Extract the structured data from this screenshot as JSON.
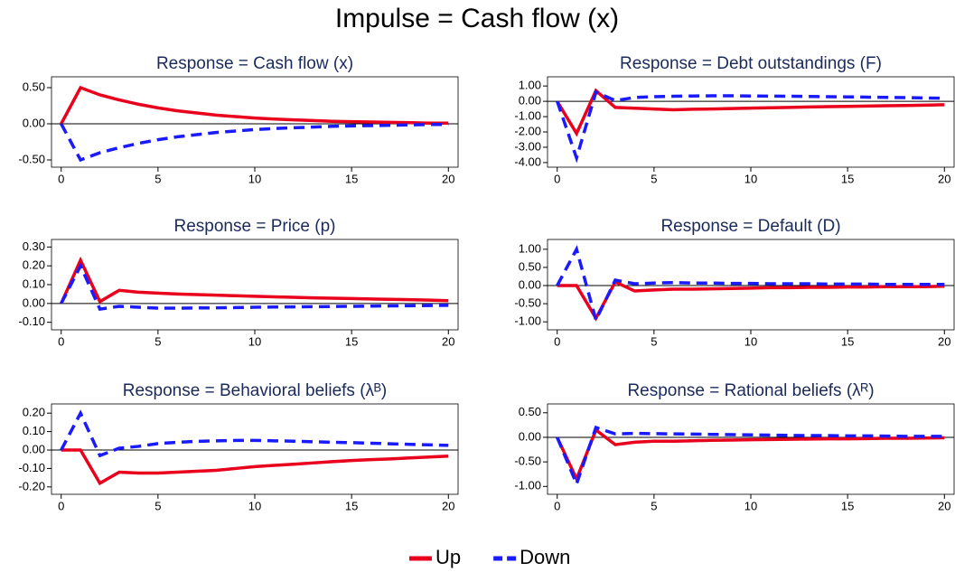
{
  "title": "Impulse = Cash flow (x)",
  "legend": [
    {
      "name": "Up",
      "color": "#e8001c",
      "dashed": false
    },
    {
      "name": "Down",
      "color": "#1a1aff",
      "dashed": true
    }
  ],
  "chart_data": [
    {
      "type": "line",
      "title": "Response = Cash flow (x)",
      "x": [
        0,
        1,
        2,
        3,
        4,
        5,
        6,
        7,
        8,
        9,
        10,
        11,
        12,
        13,
        14,
        15,
        16,
        17,
        18,
        19,
        20
      ],
      "xlim": [
        -0.5,
        20.5
      ],
      "xticks": [
        0,
        5,
        10,
        15,
        20
      ],
      "ylim": [
        -0.6,
        0.65
      ],
      "yticks": [
        {
          "value": 0.5,
          "label": "0.50"
        },
        {
          "value": 0,
          "label": "0.00"
        },
        {
          "value": -0.5,
          "label": "-0.50"
        }
      ],
      "series": [
        {
          "color": "#e8001c",
          "dashed": false,
          "values": [
            0,
            0.5,
            0.4,
            0.33,
            0.27,
            0.22,
            0.18,
            0.15,
            0.12,
            0.1,
            0.08,
            0.065,
            0.055,
            0.045,
            0.035,
            0.03,
            0.025,
            0.02,
            0.015,
            0.01,
            0.01
          ]
        },
        {
          "color": "#1a1aff",
          "dashed": true,
          "values": [
            0,
            -0.5,
            -0.4,
            -0.33,
            -0.27,
            -0.22,
            -0.18,
            -0.15,
            -0.12,
            -0.1,
            -0.08,
            -0.065,
            -0.055,
            -0.045,
            -0.035,
            -0.03,
            -0.025,
            -0.02,
            -0.015,
            -0.01,
            -0.01
          ]
        }
      ]
    },
    {
      "type": "line",
      "title": "Response = Debt outstandings (F)",
      "x": [
        0,
        1,
        2,
        3,
        4,
        5,
        6,
        7,
        8,
        9,
        10,
        11,
        12,
        13,
        14,
        15,
        16,
        17,
        18,
        19,
        20
      ],
      "xlim": [
        -0.5,
        20.5
      ],
      "xticks": [
        0,
        5,
        10,
        15,
        20
      ],
      "ylim": [
        -4.3,
        1.6
      ],
      "yticks": [
        {
          "value": 1,
          "label": "1.00"
        },
        {
          "value": 0,
          "label": "0.00"
        },
        {
          "value": -1,
          "label": "-1.00"
        },
        {
          "value": -2,
          "label": "-2.00"
        },
        {
          "value": -3,
          "label": "-3.00"
        },
        {
          "value": -4,
          "label": "-4.00"
        }
      ],
      "series": [
        {
          "color": "#e8001c",
          "dashed": false,
          "values": [
            0,
            -2.1,
            0.7,
            -0.4,
            -0.45,
            -0.5,
            -0.55,
            -0.52,
            -0.5,
            -0.47,
            -0.44,
            -0.42,
            -0.4,
            -0.37,
            -0.35,
            -0.33,
            -0.31,
            -0.29,
            -0.27,
            -0.25,
            -0.22
          ]
        },
        {
          "color": "#1a1aff",
          "dashed": true,
          "values": [
            0,
            -3.7,
            0.6,
            0.05,
            0.25,
            0.3,
            0.33,
            0.35,
            0.36,
            0.36,
            0.35,
            0.34,
            0.33,
            0.32,
            0.3,
            0.29,
            0.27,
            0.26,
            0.24,
            0.22,
            0.2
          ]
        }
      ]
    },
    {
      "type": "line",
      "title": "Response = Price (p)",
      "x": [
        0,
        1,
        2,
        3,
        4,
        5,
        6,
        7,
        8,
        9,
        10,
        11,
        12,
        13,
        14,
        15,
        16,
        17,
        18,
        19,
        20
      ],
      "xlim": [
        -0.5,
        20.5
      ],
      "xticks": [
        0,
        5,
        10,
        15,
        20
      ],
      "ylim": [
        -0.14,
        0.34
      ],
      "yticks": [
        {
          "value": 0.3,
          "label": "0.30"
        },
        {
          "value": 0.2,
          "label": "0.20"
        },
        {
          "value": 0.1,
          "label": "0.10"
        },
        {
          "value": 0,
          "label": "0.00"
        },
        {
          "value": -0.1,
          "label": "-0.10"
        }
      ],
      "series": [
        {
          "color": "#e8001c",
          "dashed": false,
          "values": [
            0,
            0.23,
            0.01,
            0.07,
            0.06,
            0.055,
            0.05,
            0.047,
            0.044,
            0.041,
            0.038,
            0.035,
            0.033,
            0.03,
            0.028,
            0.026,
            0.024,
            0.022,
            0.02,
            0.018,
            0.015
          ]
        },
        {
          "color": "#1a1aff",
          "dashed": true,
          "values": [
            0,
            0.2,
            -0.03,
            -0.015,
            -0.02,
            -0.025,
            -0.025,
            -0.024,
            -0.023,
            -0.022,
            -0.02,
            -0.019,
            -0.018,
            -0.017,
            -0.016,
            -0.015,
            -0.014,
            -0.013,
            -0.012,
            -0.011,
            -0.01
          ]
        }
      ]
    },
    {
      "type": "line",
      "title": "Response = Default (D)",
      "x": [
        0,
        1,
        2,
        3,
        4,
        5,
        6,
        7,
        8,
        9,
        10,
        11,
        12,
        13,
        14,
        15,
        16,
        17,
        18,
        19,
        20
      ],
      "xlim": [
        -0.5,
        20.5
      ],
      "xticks": [
        0,
        5,
        10,
        15,
        20
      ],
      "ylim": [
        -1.22,
        1.27
      ],
      "yticks": [
        {
          "value": 1,
          "label": "1.00"
        },
        {
          "value": 0.5,
          "label": "0.50"
        },
        {
          "value": 0,
          "label": "0.00"
        },
        {
          "value": -0.5,
          "label": "-0.50"
        },
        {
          "value": -1,
          "label": "-1.00"
        }
      ],
      "series": [
        {
          "color": "#e8001c",
          "dashed": false,
          "values": [
            0,
            0,
            -0.9,
            0.1,
            -0.15,
            -0.12,
            -0.1,
            -0.1,
            -0.09,
            -0.08,
            -0.07,
            -0.06,
            -0.06,
            -0.05,
            -0.05,
            -0.04,
            -0.04,
            -0.03,
            -0.03,
            -0.03,
            -0.02
          ]
        },
        {
          "color": "#1a1aff",
          "dashed": true,
          "values": [
            0,
            1.0,
            -0.95,
            0.15,
            0.05,
            0.07,
            0.08,
            0.07,
            0.07,
            0.06,
            0.06,
            0.05,
            0.05,
            0.05,
            0.04,
            0.04,
            0.04,
            0.03,
            0.03,
            0.03,
            0.03
          ]
        }
      ]
    },
    {
      "type": "line",
      "title": "Response = Behavioral beliefs (λᴮ)",
      "x": [
        0,
        1,
        2,
        3,
        4,
        5,
        6,
        7,
        8,
        9,
        10,
        11,
        12,
        13,
        14,
        15,
        16,
        17,
        18,
        19,
        20
      ],
      "xlim": [
        -0.5,
        20.5
      ],
      "xticks": [
        0,
        5,
        10,
        15,
        20
      ],
      "ylim": [
        -0.24,
        0.25
      ],
      "yticks": [
        {
          "value": 0.2,
          "label": "0.20"
        },
        {
          "value": 0.1,
          "label": "0.10"
        },
        {
          "value": 0,
          "label": "0.00"
        },
        {
          "value": -0.1,
          "label": "-0.10"
        },
        {
          "value": -0.2,
          "label": "-0.20"
        }
      ],
      "series": [
        {
          "color": "#e8001c",
          "dashed": false,
          "values": [
            0,
            0,
            -0.18,
            -0.12,
            -0.125,
            -0.125,
            -0.12,
            -0.115,
            -0.11,
            -0.1,
            -0.09,
            -0.083,
            -0.077,
            -0.07,
            -0.063,
            -0.057,
            -0.052,
            -0.048,
            -0.043,
            -0.038,
            -0.033
          ]
        },
        {
          "color": "#1a1aff",
          "dashed": true,
          "values": [
            0,
            0.2,
            -0.03,
            0.01,
            0.02,
            0.035,
            0.042,
            0.047,
            0.05,
            0.052,
            0.052,
            0.05,
            0.048,
            0.045,
            0.042,
            0.04,
            0.037,
            0.034,
            0.031,
            0.028,
            0.025
          ]
        }
      ]
    },
    {
      "type": "line",
      "title": "Response = Rational beliefs (λᴿ)",
      "x": [
        0,
        1,
        2,
        3,
        4,
        5,
        6,
        7,
        8,
        9,
        10,
        11,
        12,
        13,
        14,
        15,
        16,
        17,
        18,
        19,
        20
      ],
      "xlim": [
        -0.5,
        20.5
      ],
      "xticks": [
        0,
        5,
        10,
        15,
        20
      ],
      "ylim": [
        -1.16,
        0.68
      ],
      "yticks": [
        {
          "value": 0.5,
          "label": "0.50"
        },
        {
          "value": 0,
          "label": "0.00"
        },
        {
          "value": -0.5,
          "label": "-0.50"
        },
        {
          "value": -1,
          "label": "-1.00"
        }
      ],
      "series": [
        {
          "color": "#e8001c",
          "dashed": false,
          "values": [
            0,
            -0.85,
            0.15,
            -0.15,
            -0.1,
            -0.08,
            -0.08,
            -0.07,
            -0.06,
            -0.055,
            -0.05,
            -0.045,
            -0.04,
            -0.035,
            -0.03,
            -0.03,
            -0.025,
            -0.02,
            -0.02,
            -0.015,
            -0.01
          ]
        },
        {
          "color": "#1a1aff",
          "dashed": true,
          "values": [
            0,
            -0.95,
            0.2,
            0.07,
            0.08,
            0.075,
            0.07,
            0.065,
            0.06,
            0.055,
            0.05,
            0.045,
            0.04,
            0.035,
            0.035,
            0.03,
            0.03,
            0.025,
            0.02,
            0.02,
            0.02
          ]
        }
      ]
    }
  ]
}
